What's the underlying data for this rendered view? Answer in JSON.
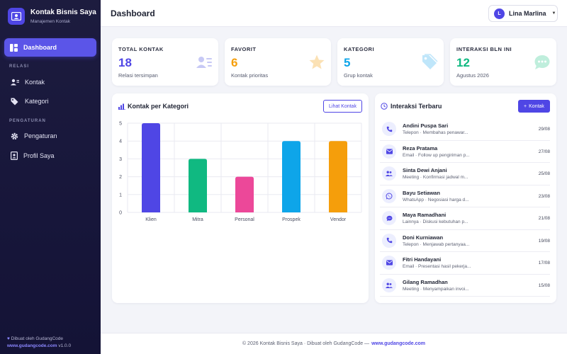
{
  "app": {
    "title": "Kontak Bisnis Saya",
    "subtitle": "Manajemen Kontak"
  },
  "sidebar": {
    "dashboard": "Dashboard",
    "section_relasi": "RELASI",
    "kontak": "Kontak",
    "kategori": "Kategori",
    "section_pengaturan": "PENGATURAN",
    "pengaturan": "Pengaturan",
    "profil": "Profil Saya",
    "footer_made": "Dibuat oleh GudangCode",
    "footer_link": "www.gudangcode.com",
    "footer_version": "v1.0.0"
  },
  "header": {
    "title": "Dashboard",
    "user_initial": "L",
    "user_name": "Lina Marlina"
  },
  "stats": [
    {
      "label": "TOTAL KONTAK",
      "value": "18",
      "sub": "Relasi tersimpan",
      "color": "#4f46e5",
      "icon": "contact-card-icon"
    },
    {
      "label": "FAVORIT",
      "value": "6",
      "sub": "Kontak prioritas",
      "color": "#f59e0b",
      "icon": "star-icon"
    },
    {
      "label": "KATEGORI",
      "value": "5",
      "sub": "Grup kontak",
      "color": "#0ea5e9",
      "icon": "tag-icon"
    },
    {
      "label": "INTERAKSI BLN INI",
      "value": "12",
      "sub": "Agustus 2026",
      "color": "#10b981",
      "icon": "chat-bubble-icon"
    }
  ],
  "chart_card": {
    "title": "Kontak per Kategori",
    "button": "Lihat Kontak"
  },
  "chart_data": {
    "type": "bar",
    "categories": [
      "Klien",
      "Mitra",
      "Personal",
      "Prospek",
      "Vendor"
    ],
    "values": [
      5,
      3,
      2,
      4,
      4
    ],
    "colors": [
      "#4f46e5",
      "#10b981",
      "#ec4899",
      "#0ea5e9",
      "#f59e0b"
    ],
    "ylim": [
      0,
      5
    ],
    "yticks": [
      0,
      1,
      2,
      3,
      4,
      5
    ],
    "grid": true
  },
  "inter_card": {
    "title": "Interaksi Terbaru",
    "button": "Kontak",
    "button_icon": "+"
  },
  "interactions": [
    {
      "name": "Andini Puspa Sari",
      "desc": "Telepon · Membahas penawar...",
      "date": "29/08",
      "icon": "phone"
    },
    {
      "name": "Reza Pratama",
      "desc": "Email · Follow up pengiriman p...",
      "date": "27/08",
      "icon": "email"
    },
    {
      "name": "Sinta Dewi Anjani",
      "desc": "Meeting · Konfirmasi jadwal m...",
      "date": "25/08",
      "icon": "meeting"
    },
    {
      "name": "Bayu Setiawan",
      "desc": "WhatsApp · Negosiasi harga d...",
      "date": "23/08",
      "icon": "whatsapp"
    },
    {
      "name": "Maya Ramadhani",
      "desc": "Lainnya · Diskusi kebutuhan p...",
      "date": "21/08",
      "icon": "chat"
    },
    {
      "name": "Doni Kurniawan",
      "desc": "Telepon · Menjawab pertanyaa...",
      "date": "19/08",
      "icon": "phone"
    },
    {
      "name": "Fitri Handayani",
      "desc": "Email · Presentasi hasil pekerja...",
      "date": "17/08",
      "icon": "email"
    },
    {
      "name": "Gilang Ramadhan",
      "desc": "Meeting · Menyampaikan invoi...",
      "date": "15/08",
      "icon": "meeting"
    }
  ],
  "footer": {
    "text": "© 2026 Kontak Bisnis Saya · Dibuat oleh GudangCode —",
    "link": "www.gudangcode.com"
  }
}
